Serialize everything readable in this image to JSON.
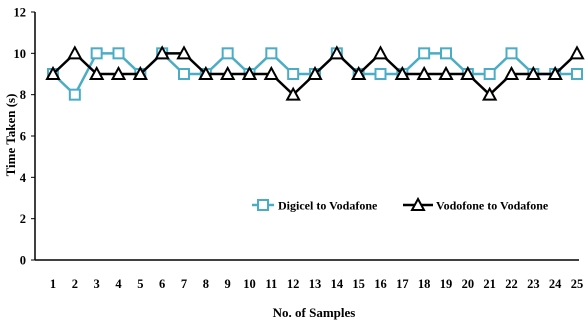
{
  "chart_data": {
    "type": "line",
    "xlabel": "No. of Samples",
    "ylabel": "Time Taken (s)",
    "x": [
      1,
      2,
      3,
      4,
      5,
      6,
      7,
      8,
      9,
      10,
      11,
      12,
      13,
      14,
      15,
      16,
      17,
      18,
      19,
      20,
      21,
      22,
      23,
      24,
      25
    ],
    "x_tick_labels": [
      "1",
      "2",
      "3",
      "4",
      "5",
      "6",
      "7",
      "8",
      "9",
      "10",
      "11",
      "12",
      "13",
      "14",
      "15",
      "16",
      "17",
      "18",
      "19",
      "20",
      "21",
      "22",
      "23",
      "24",
      "25"
    ],
    "ylim": [
      0,
      12
    ],
    "y_ticks": [
      0,
      2,
      4,
      6,
      8,
      10,
      12
    ],
    "y_tick_labels": [
      "0",
      "2",
      "4",
      "6",
      "8",
      "10",
      "12"
    ],
    "grid": false,
    "legend_position": "lower-right",
    "series": [
      {
        "name": "Digicel to Vodafone",
        "color": "#4bacc6",
        "marker": "square",
        "values": [
          9,
          8,
          10,
          10,
          9,
          10,
          9,
          9,
          10,
          9,
          10,
          9,
          9,
          10,
          9,
          9,
          9,
          10,
          10,
          9,
          9,
          10,
          9,
          9,
          9
        ]
      },
      {
        "name": "Vodofone to Vodafone",
        "color": "#000000",
        "marker": "triangle",
        "values": [
          9,
          10,
          9,
          9,
          9,
          10,
          10,
          9,
          9,
          9,
          9,
          8,
          9,
          10,
          9,
          10,
          9,
          9,
          9,
          9,
          8,
          9,
          9,
          9,
          10
        ]
      }
    ]
  }
}
